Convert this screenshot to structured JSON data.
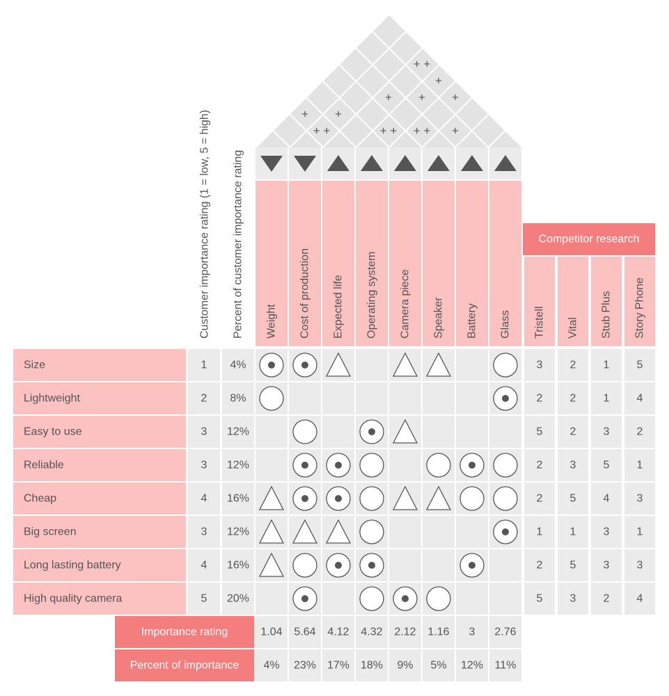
{
  "colors": {
    "pink": "#fcc1c1",
    "pink_dark": "#f47d7d",
    "grey": "#ebebeb",
    "roof": "#e3e3e3",
    "text": "#555555",
    "symbol": "#555555"
  },
  "left_headers": [
    "Customer importance  rating (1 = low, 5 = high)",
    "Percent of customer importance rating"
  ],
  "requirements": [
    {
      "label": "Size",
      "rating": "1",
      "percent": "4%"
    },
    {
      "label": "Lightweight",
      "rating": "2",
      "percent": "8%"
    },
    {
      "label": "Easy to use",
      "rating": "3",
      "percent": "12%"
    },
    {
      "label": "Reliable",
      "rating": "3",
      "percent": "12%"
    },
    {
      "label": "Cheap",
      "rating": "4",
      "percent": "16%"
    },
    {
      "label": "Big screen",
      "rating": "3",
      "percent": "12%"
    },
    {
      "label": "Long lasting battery",
      "rating": "4",
      "percent": "16%"
    },
    {
      "label": "High quality camera",
      "rating": "5",
      "percent": "20%"
    }
  ],
  "technical": [
    {
      "label": "Weight",
      "direction": "down",
      "importance": "1.04",
      "percent": "4%"
    },
    {
      "label": "Cost of production",
      "direction": "down",
      "importance": "5.64",
      "percent": "23%"
    },
    {
      "label": "Expected life",
      "direction": "up",
      "importance": "4.12",
      "percent": "17%"
    },
    {
      "label": "Operating system",
      "direction": "up",
      "importance": "4.32",
      "percent": "18%"
    },
    {
      "label": "Camera piece",
      "direction": "up",
      "importance": "2.12",
      "percent": "9%"
    },
    {
      "label": "Speaker",
      "direction": "up",
      "importance": "1.16",
      "percent": "5%"
    },
    {
      "label": "Battery",
      "direction": "up",
      "importance": "3",
      "percent": "12%"
    },
    {
      "label": "Glass",
      "direction": "up",
      "importance": "2.76",
      "percent": "11%"
    }
  ],
  "matrix_legend_names": {
    "dot": "strong-relationship",
    "circle": "medium-relationship",
    "triangle": "weak-relationship"
  },
  "matrix": [
    [
      "dot",
      "dot",
      "triangle",
      "",
      "triangle",
      "triangle",
      "",
      "circle"
    ],
    [
      "circle",
      "",
      "",
      "",
      "",
      "",
      "",
      "dot"
    ],
    [
      "",
      "circle",
      "",
      "dot",
      "triangle",
      "",
      "",
      ""
    ],
    [
      "",
      "dot",
      "dot",
      "circle",
      "",
      "circle",
      "dot",
      "circle"
    ],
    [
      "triangle",
      "dot",
      "dot",
      "circle",
      "triangle",
      "triangle",
      "circle",
      "circle"
    ],
    [
      "triangle",
      "triangle",
      "triangle",
      "circle",
      "",
      "",
      "",
      "dot"
    ],
    [
      "triangle",
      "circle",
      "dot",
      "dot",
      "",
      "",
      "dot",
      ""
    ],
    [
      "",
      "dot",
      "",
      "circle",
      "dot",
      "circle",
      "",
      ""
    ]
  ],
  "competitor": {
    "title": "Competitor research",
    "names": [
      "Tristell",
      "Vital",
      "Stub Plus",
      "Story Phone"
    ],
    "scores": [
      [
        "3",
        "2",
        "1",
        "5"
      ],
      [
        "2",
        "2",
        "1",
        "4"
      ],
      [
        "5",
        "2",
        "3",
        "2"
      ],
      [
        "2",
        "3",
        "5",
        "1"
      ],
      [
        "2",
        "5",
        "4",
        "3"
      ],
      [
        "1",
        "1",
        "3",
        "1"
      ],
      [
        "2",
        "5",
        "3",
        "3"
      ],
      [
        "5",
        "3",
        "2",
        "4"
      ]
    ]
  },
  "summary": {
    "importance_label": "Importance rating",
    "percent_label": "Percent of importance"
  },
  "roof_marks": [
    {
      "cols": [
        0,
        2
      ],
      "mark": "+"
    },
    {
      "cols": [
        1,
        2
      ],
      "mark": "+ +"
    },
    {
      "cols": [
        1,
        3
      ],
      "mark": "+"
    },
    {
      "cols": [
        3,
        6
      ],
      "mark": "+"
    },
    {
      "cols": [
        3,
        4
      ],
      "mark": "+ +"
    },
    {
      "cols": [
        2,
        5
      ],
      "mark": "+"
    },
    {
      "cols": [
        4,
        5
      ],
      "mark": "+ +"
    },
    {
      "cols": [
        5,
        6
      ],
      "mark": "+"
    },
    {
      "cols": [
        4,
        7
      ],
      "mark": "+"
    },
    {
      "cols": [
        3,
        7
      ],
      "mark": "+"
    },
    {
      "cols": [
        2,
        7
      ],
      "mark": "+ +"
    }
  ]
}
